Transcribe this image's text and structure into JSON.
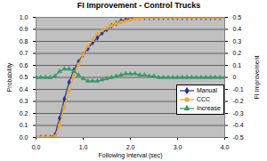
{
  "chart_data": {
    "type": "line",
    "title": "FI Improvement - Control Trucks",
    "x_label": "Following Interval (sec)",
    "y_label": "Probability",
    "y2_label": "FI Improvement",
    "x": [
      0,
      0.1,
      0.2,
      0.3,
      0.4,
      0.5,
      0.6,
      0.7,
      0.8,
      0.9,
      1,
      1.1,
      1.2,
      1.3,
      1.4,
      1.5,
      1.6,
      1.7,
      1.8,
      1.9,
      2,
      2.1,
      2.2,
      2.3,
      2.4,
      2.5,
      2.6,
      2.7,
      2.8,
      2.9,
      3,
      3.1,
      3.2,
      3.3,
      3.4,
      3.5,
      3.6,
      3.7,
      3.8,
      3.9,
      4
    ],
    "series": [
      {
        "name": "Manual",
        "color": "#1f2fa0",
        "marker": "diamond",
        "line_style": "solid",
        "values": [
          0,
          0,
          0,
          0,
          0.02,
          0.16,
          0.32,
          0.46,
          0.56,
          0.63,
          0.69,
          0.74,
          0.79,
          0.83,
          0.87,
          0.9,
          0.93,
          0.95,
          0.97,
          0.98,
          0.99,
          1,
          1,
          1,
          1,
          1,
          1,
          1,
          1,
          1,
          1,
          1,
          1,
          1,
          1,
          1,
          1,
          1,
          1,
          1,
          1
        ]
      },
      {
        "name": "CCC",
        "color": "#f5a623",
        "marker": "square",
        "line_style": "solid",
        "values": [
          0,
          0,
          0,
          0,
          0.01,
          0.1,
          0.25,
          0.39,
          0.51,
          0.61,
          0.69,
          0.76,
          0.81,
          0.86,
          0.89,
          0.91,
          0.93,
          0.95,
          0.96,
          0.97,
          0.98,
          0.99,
          0.99,
          1,
          1,
          1,
          1,
          1,
          1,
          1,
          1,
          1,
          1,
          1,
          1,
          1,
          1,
          1,
          1,
          1,
          1
        ]
      },
      {
        "name": "Increase",
        "color": "#339966",
        "marker": "triangle",
        "line_style": "solid",
        "axis": "y2",
        "values": [
          0,
          0,
          0,
          0,
          0.01,
          0.05,
          0.07,
          0.07,
          0.05,
          0.02,
          -0.01,
          -0.03,
          -0.03,
          -0.03,
          -0.02,
          -0.01,
          0,
          0.01,
          0.02,
          0.03,
          0.03,
          0.03,
          0.02,
          0.02,
          0.01,
          0.01,
          0,
          0,
          0,
          0,
          0,
          0,
          0,
          0,
          0,
          0,
          0,
          0,
          0,
          0,
          0
        ]
      }
    ],
    "xlim": [
      0,
      4
    ],
    "xticks": [
      {
        "value": 0,
        "label": "0.0"
      },
      {
        "value": 1,
        "label": "1.0"
      },
      {
        "value": 2,
        "label": "2.0"
      },
      {
        "value": 3,
        "label": "3.0"
      },
      {
        "value": 4,
        "label": "4.0"
      }
    ],
    "ylim": [
      0,
      1
    ],
    "yticks": [
      {
        "value": 0,
        "label": "0.0"
      },
      0.1,
      0.2,
      0.3,
      0.4,
      0.5,
      0.6,
      0.7,
      0.8,
      0.9,
      {
        "value": 1,
        "label": "1.0"
      }
    ],
    "y2lim": [
      -0.5,
      0.5
    ],
    "y2ticks": [
      -0.5,
      -0.4,
      -0.3,
      -0.2,
      -0.1,
      0,
      0.1,
      0.2,
      0.3,
      0.4,
      0.5
    ],
    "grid": true,
    "legend": "right"
  }
}
